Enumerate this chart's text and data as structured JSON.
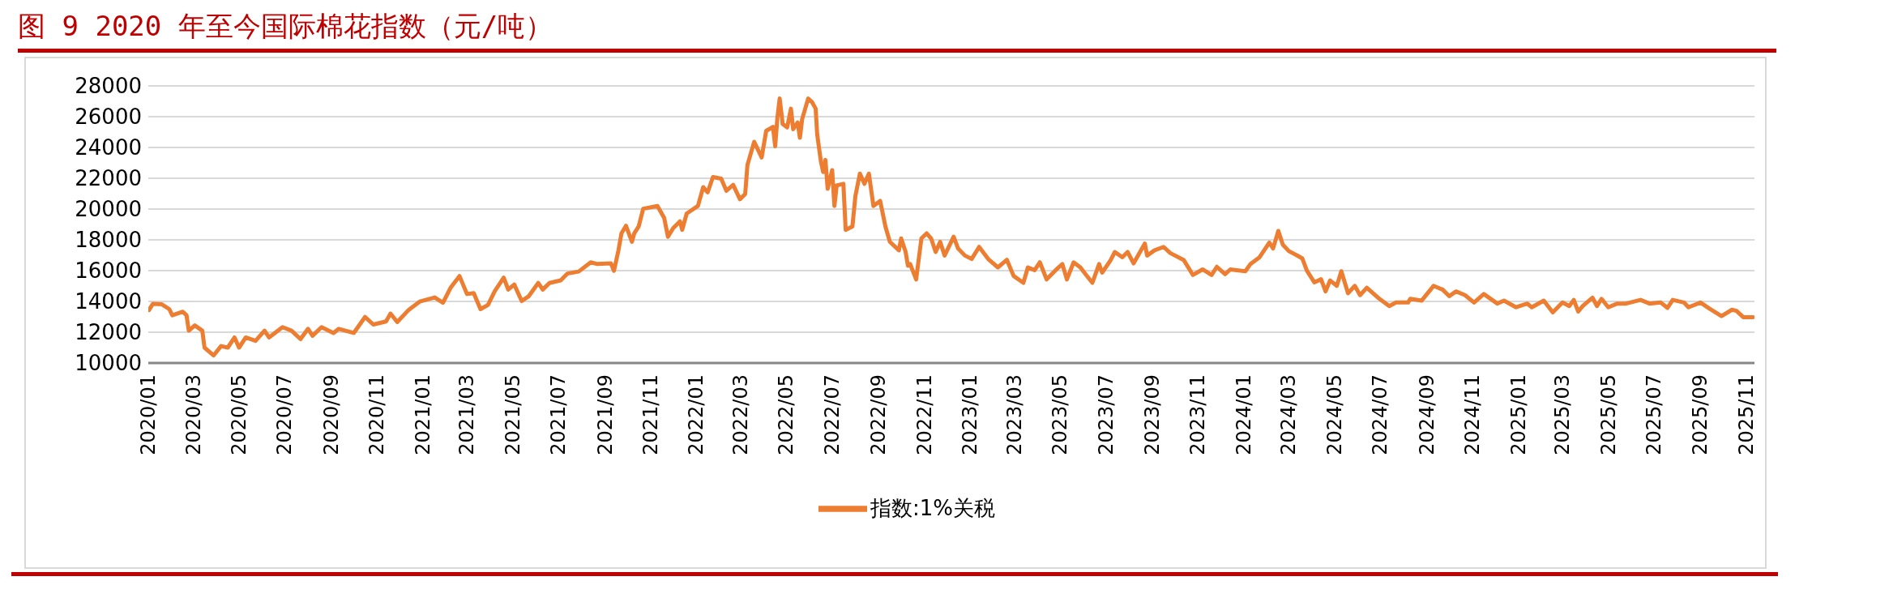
{
  "chart_data": {
    "type": "line",
    "title": "图 9 2020 年至今国际棉花指数（元/吨）",
    "x": [
      "2020-01-02",
      "2020-01-07",
      "2020-01-19",
      "2020-01-29",
      "2020-02-02",
      "2020-02-16",
      "2020-02-21",
      "2020-02-24",
      "2020-03-03",
      "2020-03-13",
      "2020-03-16",
      "2020-03-28",
      "2020-04-07",
      "2020-04-16",
      "2020-04-25",
      "2020-05-01",
      "2020-05-10",
      "2020-05-23",
      "2020-06-04",
      "2020-06-10",
      "2020-06-28",
      "2020-07-10",
      "2020-07-22",
      "2020-08-01",
      "2020-08-07",
      "2020-08-19",
      "2020-09-04",
      "2020-09-11",
      "2020-10-01",
      "2020-10-16",
      "2020-10-27",
      "2020-11-13",
      "2020-11-19",
      "2020-11-28",
      "2020-12-13",
      "2020-12-28",
      "2021-01-17",
      "2021-01-28",
      "2021-02-07",
      "2021-02-19",
      "2021-03-01",
      "2021-03-10",
      "2021-03-19",
      "2021-03-29",
      "2021-04-07",
      "2021-04-19",
      "2021-04-25",
      "2021-05-03",
      "2021-05-13",
      "2021-05-22",
      "2021-06-04",
      "2021-06-10",
      "2021-06-19",
      "2021-07-04",
      "2021-07-13",
      "2021-07-28",
      "2021-08-13",
      "2021-08-22",
      "2021-09-09",
      "2021-09-13",
      "2021-09-19",
      "2021-09-23",
      "2021-09-29",
      "2021-10-07",
      "2021-10-10",
      "2021-10-16",
      "2021-10-22",
      "2021-11-10",
      "2021-11-19",
      "2021-11-24",
      "2021-12-01",
      "2021-12-10",
      "2021-12-13",
      "2021-12-19",
      "2022-01-03",
      "2022-01-10",
      "2022-01-16",
      "2022-01-23",
      "2022-02-03",
      "2022-02-10",
      "2022-02-19",
      "2022-02-28",
      "2022-03-07",
      "2022-03-10",
      "2022-03-19",
      "2022-03-29",
      "2022-04-04",
      "2022-04-13",
      "2022-04-16",
      "2022-04-19",
      "2022-04-22",
      "2022-04-26",
      "2022-05-02",
      "2022-05-07",
      "2022-05-10",
      "2022-05-16",
      "2022-05-19",
      "2022-05-22",
      "2022-05-30",
      "2022-06-04",
      "2022-06-09",
      "2022-06-11",
      "2022-06-16",
      "2022-06-19",
      "2022-06-22",
      "2022-06-25",
      "2022-07-01",
      "2022-07-04",
      "2022-07-07",
      "2022-07-16",
      "2022-07-19",
      "2022-07-28",
      "2022-08-01",
      "2022-08-07",
      "2022-08-13",
      "2022-08-19",
      "2022-08-25",
      "2022-09-03",
      "2022-09-10",
      "2022-09-16",
      "2022-09-28",
      "2022-10-01",
      "2022-10-07",
      "2022-10-10",
      "2022-10-13",
      "2022-10-21",
      "2022-10-28",
      "2022-11-04",
      "2022-11-10",
      "2022-11-16",
      "2022-11-22",
      "2022-11-28",
      "2022-12-10",
      "2022-12-16",
      "2022-12-25",
      "2023-01-03",
      "2023-01-13",
      "2023-01-25",
      "2023-02-07",
      "2023-02-19",
      "2023-02-28",
      "2023-03-13",
      "2023-03-19",
      "2023-03-28",
      "2023-04-04",
      "2023-04-13",
      "2023-04-25",
      "2023-05-04",
      "2023-05-10",
      "2023-05-19",
      "2023-05-28",
      "2023-06-04",
      "2023-06-13",
      "2023-06-22",
      "2023-06-26",
      "2023-07-07",
      "2023-07-13",
      "2023-07-23",
      "2023-07-30",
      "2023-08-07",
      "2023-08-22",
      "2023-08-25",
      "2023-09-04",
      "2023-09-16",
      "2023-09-25",
      "2023-10-13",
      "2023-10-25",
      "2023-11-07",
      "2023-11-19",
      "2023-11-26",
      "2023-12-07",
      "2023-12-14",
      "2024-01-03",
      "2024-01-10",
      "2024-01-22",
      "2024-02-04",
      "2024-02-09",
      "2024-02-16",
      "2024-02-22",
      "2024-03-01",
      "2024-03-13",
      "2024-03-19",
      "2024-03-25",
      "2024-04-04",
      "2024-04-13",
      "2024-04-19",
      "2024-04-25",
      "2024-05-04",
      "2024-05-10",
      "2024-05-19",
      "2024-05-28",
      "2024-06-04",
      "2024-06-13",
      "2024-06-28",
      "2024-07-13",
      "2024-07-22",
      "2024-08-07",
      "2024-08-10",
      "2024-08-25",
      "2024-09-10",
      "2024-09-22",
      "2024-10-01",
      "2024-10-10",
      "2024-10-22",
      "2024-11-03",
      "2024-11-16",
      "2024-12-04",
      "2024-12-13",
      "2024-12-29",
      "2025-01-13",
      "2025-01-19",
      "2025-02-04",
      "2025-02-16",
      "2025-03-01",
      "2025-03-10",
      "2025-03-16",
      "2025-03-22",
      "2025-03-28",
      "2025-04-10",
      "2025-04-16",
      "2025-04-22",
      "2025-05-01",
      "2025-05-13",
      "2025-05-25",
      "2025-06-13",
      "2025-06-25",
      "2025-07-10",
      "2025-07-19",
      "2025-07-26",
      "2025-08-10",
      "2025-08-16",
      "2025-09-01",
      "2025-09-13",
      "2025-09-29",
      "2025-10-13",
      "2025-10-19",
      "2025-10-28",
      "2025-11-10"
    ],
    "series": [
      {
        "name": "指数:1%关税",
        "color": "#ed7d31",
        "values": [
          13440,
          13840,
          13810,
          13500,
          13100,
          13330,
          13100,
          12100,
          12440,
          12100,
          11000,
          10490,
          11100,
          11000,
          11660,
          11000,
          11660,
          11440,
          12100,
          11660,
          12330,
          12100,
          11550,
          12220,
          11770,
          12330,
          11950,
          12220,
          11950,
          12990,
          12500,
          12700,
          13210,
          12660,
          13440,
          13990,
          14260,
          13920,
          14880,
          15650,
          14480,
          14540,
          13500,
          13770,
          14660,
          15540,
          14770,
          15100,
          14030,
          14320,
          15200,
          14770,
          15200,
          15370,
          15810,
          15940,
          16540,
          16430,
          16470,
          15990,
          17320,
          18420,
          18910,
          17870,
          18420,
          18870,
          20020,
          20200,
          19420,
          18200,
          18760,
          19200,
          18650,
          19710,
          20200,
          21420,
          21090,
          22080,
          21970,
          21190,
          21570,
          20640,
          20970,
          22860,
          24370,
          23350,
          25080,
          25340,
          24080,
          25960,
          27180,
          25520,
          25300,
          26520,
          25190,
          25630,
          24630,
          25850,
          27180,
          26960,
          26520,
          24860,
          23080,
          22410,
          23190,
          21310,
          22530,
          20200,
          21530,
          21640,
          18650,
          18870,
          20860,
          22300,
          21640,
          22300,
          20200,
          20530,
          18870,
          17870,
          17320,
          18090,
          17210,
          16320,
          16430,
          15430,
          18090,
          18420,
          18090,
          17210,
          17870,
          16980,
          18200,
          17430,
          16980,
          16760,
          17540,
          16760,
          16210,
          16700,
          15650,
          15210,
          16210,
          16030,
          16540,
          15430,
          16030,
          16430,
          15430,
          16540,
          16210,
          15760,
          15210,
          16430,
          15870,
          16650,
          17210,
          16870,
          17210,
          16470,
          17760,
          16980,
          17320,
          17540,
          17140,
          16680,
          15720,
          16080,
          15720,
          16250,
          15770,
          16080,
          15960,
          16440,
          16870,
          17820,
          17440,
          18580,
          17680,
          17270,
          16960,
          16790,
          16010,
          15240,
          15440,
          14650,
          15360,
          15010,
          15960,
          14530,
          15010,
          14410,
          14890,
          14240,
          13700,
          13930,
          13930,
          14170,
          14050,
          15010,
          14770,
          14340,
          14650,
          14410,
          13930,
          14480,
          13860,
          14050,
          13620,
          13860,
          13620,
          14050,
          13290,
          13930,
          13700,
          14100,
          13340,
          13700,
          14240,
          13700,
          14170,
          13620,
          13860,
          13860,
          14100,
          13860,
          13930,
          13580,
          14100,
          13930,
          13620,
          13930,
          13530,
          13050,
          13460,
          13390,
          12980,
          12980
        ]
      }
    ],
    "xlim": [
      "2020-01-01",
      "2025-11-12"
    ],
    "xticks": [
      {
        "value": "2020-01-01",
        "label": "2020/01"
      },
      {
        "value": "2020-03-01",
        "label": "2020/03"
      },
      {
        "value": "2020-05-01",
        "label": "2020/05"
      },
      {
        "value": "2020-07-01",
        "label": "2020/07"
      },
      {
        "value": "2020-09-01",
        "label": "2020/09"
      },
      {
        "value": "2020-11-01",
        "label": "2020/11"
      },
      {
        "value": "2021-01-01",
        "label": "2021/01"
      },
      {
        "value": "2021-03-01",
        "label": "2021/03"
      },
      {
        "value": "2021-05-01",
        "label": "2021/05"
      },
      {
        "value": "2021-07-01",
        "label": "2021/07"
      },
      {
        "value": "2021-09-01",
        "label": "2021/09"
      },
      {
        "value": "2021-11-01",
        "label": "2021/11"
      },
      {
        "value": "2022-01-01",
        "label": "2022/01"
      },
      {
        "value": "2022-03-01",
        "label": "2022/03"
      },
      {
        "value": "2022-05-01",
        "label": "2022/05"
      },
      {
        "value": "2022-07-01",
        "label": "2022/07"
      },
      {
        "value": "2022-09-01",
        "label": "2022/09"
      },
      {
        "value": "2022-11-01",
        "label": "2022/11"
      },
      {
        "value": "2023-01-01",
        "label": "2023/01"
      },
      {
        "value": "2023-03-01",
        "label": "2023/03"
      },
      {
        "value": "2023-05-01",
        "label": "2023/05"
      },
      {
        "value": "2023-07-01",
        "label": "2023/07"
      },
      {
        "value": "2023-09-01",
        "label": "2023/09"
      },
      {
        "value": "2023-11-01",
        "label": "2023/11"
      },
      {
        "value": "2024-01-01",
        "label": "2024/01"
      },
      {
        "value": "2024-03-01",
        "label": "2024/03"
      },
      {
        "value": "2024-05-01",
        "label": "2024/05"
      },
      {
        "value": "2024-07-01",
        "label": "2024/07"
      },
      {
        "value": "2024-09-01",
        "label": "2024/09"
      },
      {
        "value": "2024-11-01",
        "label": "2024/11"
      },
      {
        "value": "2025-01-01",
        "label": "2025/01"
      },
      {
        "value": "2025-03-01",
        "label": "2025/03"
      },
      {
        "value": "2025-05-01",
        "label": "2025/05"
      },
      {
        "value": "2025-07-01",
        "label": "2025/07"
      },
      {
        "value": "2025-09-01",
        "label": "2025/09"
      },
      {
        "value": "2025-11-01",
        "label": "2025/11"
      }
    ],
    "ylim": [
      10000,
      28000
    ],
    "yticks": [
      10000,
      12000,
      14000,
      16000,
      18000,
      20000,
      22000,
      24000,
      26000,
      28000
    ],
    "grid": "y",
    "legend": "bottom",
    "marker": "none",
    "line_style": "solid"
  }
}
